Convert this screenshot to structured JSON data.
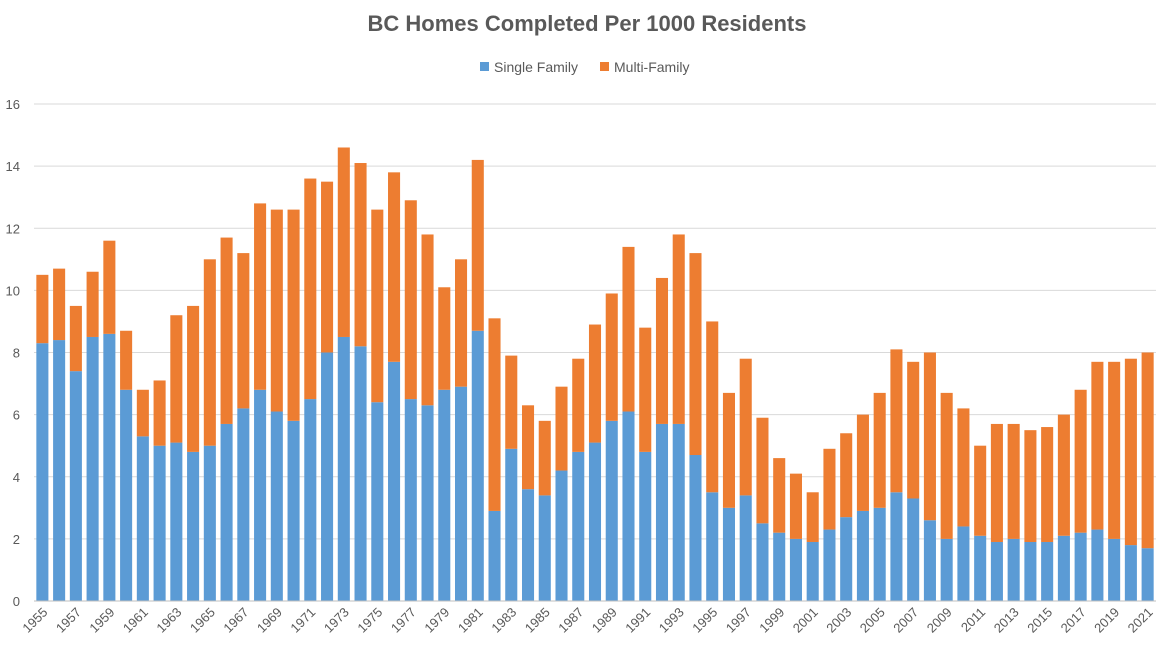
{
  "chart_data": {
    "type": "bar",
    "stacked": true,
    "title": "BC Homes Completed Per 1000 Residents",
    "xlabel": "",
    "ylabel": "",
    "ylim": [
      0,
      16
    ],
    "yticks": [
      0,
      2,
      4,
      6,
      8,
      10,
      12,
      14,
      16
    ],
    "grid": true,
    "legend_position": "top",
    "categories": [
      "1955",
      "1956",
      "1957",
      "1958",
      "1959",
      "1960",
      "1961",
      "1962",
      "1963",
      "1964",
      "1965",
      "1966",
      "1967",
      "1968",
      "1969",
      "1970",
      "1971",
      "1972",
      "1973",
      "1974",
      "1975",
      "1976",
      "1977",
      "1978",
      "1979",
      "1980",
      "1981",
      "1982",
      "1983",
      "1984",
      "1985",
      "1986",
      "1987",
      "1988",
      "1989",
      "1990",
      "1991",
      "1992",
      "1993",
      "1994",
      "1995",
      "1996",
      "1997",
      "1998",
      "1999",
      "2000",
      "2001",
      "2002",
      "2003",
      "2004",
      "2005",
      "2006",
      "2007",
      "2008",
      "2009",
      "2010",
      "2011",
      "2012",
      "2013",
      "2014",
      "2015",
      "2016",
      "2017",
      "2018",
      "2019",
      "2020",
      "2021"
    ],
    "tick_labels_shown": [
      "1955",
      "1957",
      "1959",
      "1961",
      "1963",
      "1965",
      "1967",
      "1969",
      "1971",
      "1973",
      "1975",
      "1977",
      "1979",
      "1981",
      "1983",
      "1985",
      "1987",
      "1989",
      "1991",
      "1993",
      "1995",
      "1997",
      "1999",
      "2001",
      "2003",
      "2005",
      "2007",
      "2009",
      "2011",
      "2013",
      "2015",
      "2017",
      "2019",
      "2021"
    ],
    "series": [
      {
        "name": "Single Family",
        "color": "#5b9bd5",
        "values": [
          8.3,
          8.4,
          7.4,
          8.5,
          8.6,
          6.8,
          5.3,
          5.0,
          5.1,
          4.8,
          5.0,
          5.7,
          6.2,
          6.8,
          6.1,
          5.8,
          6.5,
          8.0,
          8.5,
          8.2,
          6.4,
          7.7,
          6.5,
          6.3,
          6.8,
          6.9,
          8.7,
          2.9,
          4.9,
          3.6,
          3.4,
          4.2,
          4.8,
          5.1,
          5.8,
          6.1,
          4.8,
          5.7,
          5.7,
          4.7,
          3.5,
          3.0,
          3.4,
          2.5,
          2.2,
          2.0,
          1.9,
          2.3,
          2.7,
          2.9,
          3.0,
          3.5,
          3.3,
          2.6,
          2.0,
          2.4,
          2.1,
          1.9,
          2.0,
          1.9,
          1.9,
          2.1,
          2.2,
          2.3,
          2.0,
          1.8,
          1.7
        ]
      },
      {
        "name": "Multi-Family",
        "color": "#ed7d31",
        "values": [
          2.2,
          2.3,
          2.1,
          2.1,
          3.0,
          1.9,
          1.5,
          2.1,
          4.1,
          4.7,
          6.0,
          6.0,
          5.0,
          6.0,
          6.5,
          6.8,
          7.1,
          5.5,
          6.1,
          5.9,
          6.2,
          6.1,
          6.4,
          5.5,
          3.3,
          4.1,
          5.5,
          6.2,
          3.0,
          2.7,
          2.4,
          2.7,
          3.0,
          3.8,
          4.1,
          5.3,
          4.0,
          4.7,
          6.1,
          6.5,
          5.5,
          3.7,
          4.4,
          3.4,
          2.4,
          2.1,
          1.6,
          2.6,
          2.7,
          3.1,
          3.7,
          4.6,
          4.4,
          5.4,
          4.7,
          3.8,
          2.9,
          3.8,
          3.7,
          3.6,
          3.7,
          3.9,
          4.6,
          5.4,
          5.7,
          6.0,
          6.3
        ]
      }
    ]
  }
}
